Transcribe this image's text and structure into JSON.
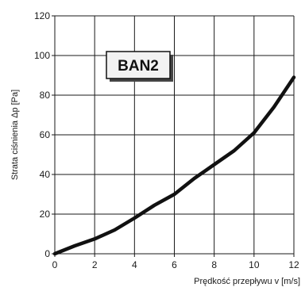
{
  "chart_data": {
    "type": "line",
    "title": "",
    "xlabel": "Prędkość przepływu v [m/s]",
    "ylabel": "Strata ciśnienia Δp [Pa]",
    "xlim": [
      0,
      12
    ],
    "ylim": [
      0,
      120
    ],
    "x_ticks": [
      "0",
      "2",
      "4",
      "6",
      "8",
      "10",
      "12"
    ],
    "y_ticks": [
      "0",
      "20",
      "40",
      "60",
      "80",
      "100",
      "120"
    ],
    "grid": true,
    "annotation": "BAN2",
    "series": [
      {
        "x": [
          0,
          1,
          2,
          3,
          4,
          5,
          6,
          7,
          8,
          9,
          10,
          11,
          12
        ],
        "y": [
          0,
          4,
          7.5,
          12,
          18,
          24.5,
          30,
          38,
          45,
          52,
          61,
          74,
          89
        ]
      }
    ]
  },
  "colors": {
    "line": "#111111",
    "grid": "#1a1a1a",
    "badge_fill": "#f2f2f2",
    "badge_shadow": "#444444"
  }
}
